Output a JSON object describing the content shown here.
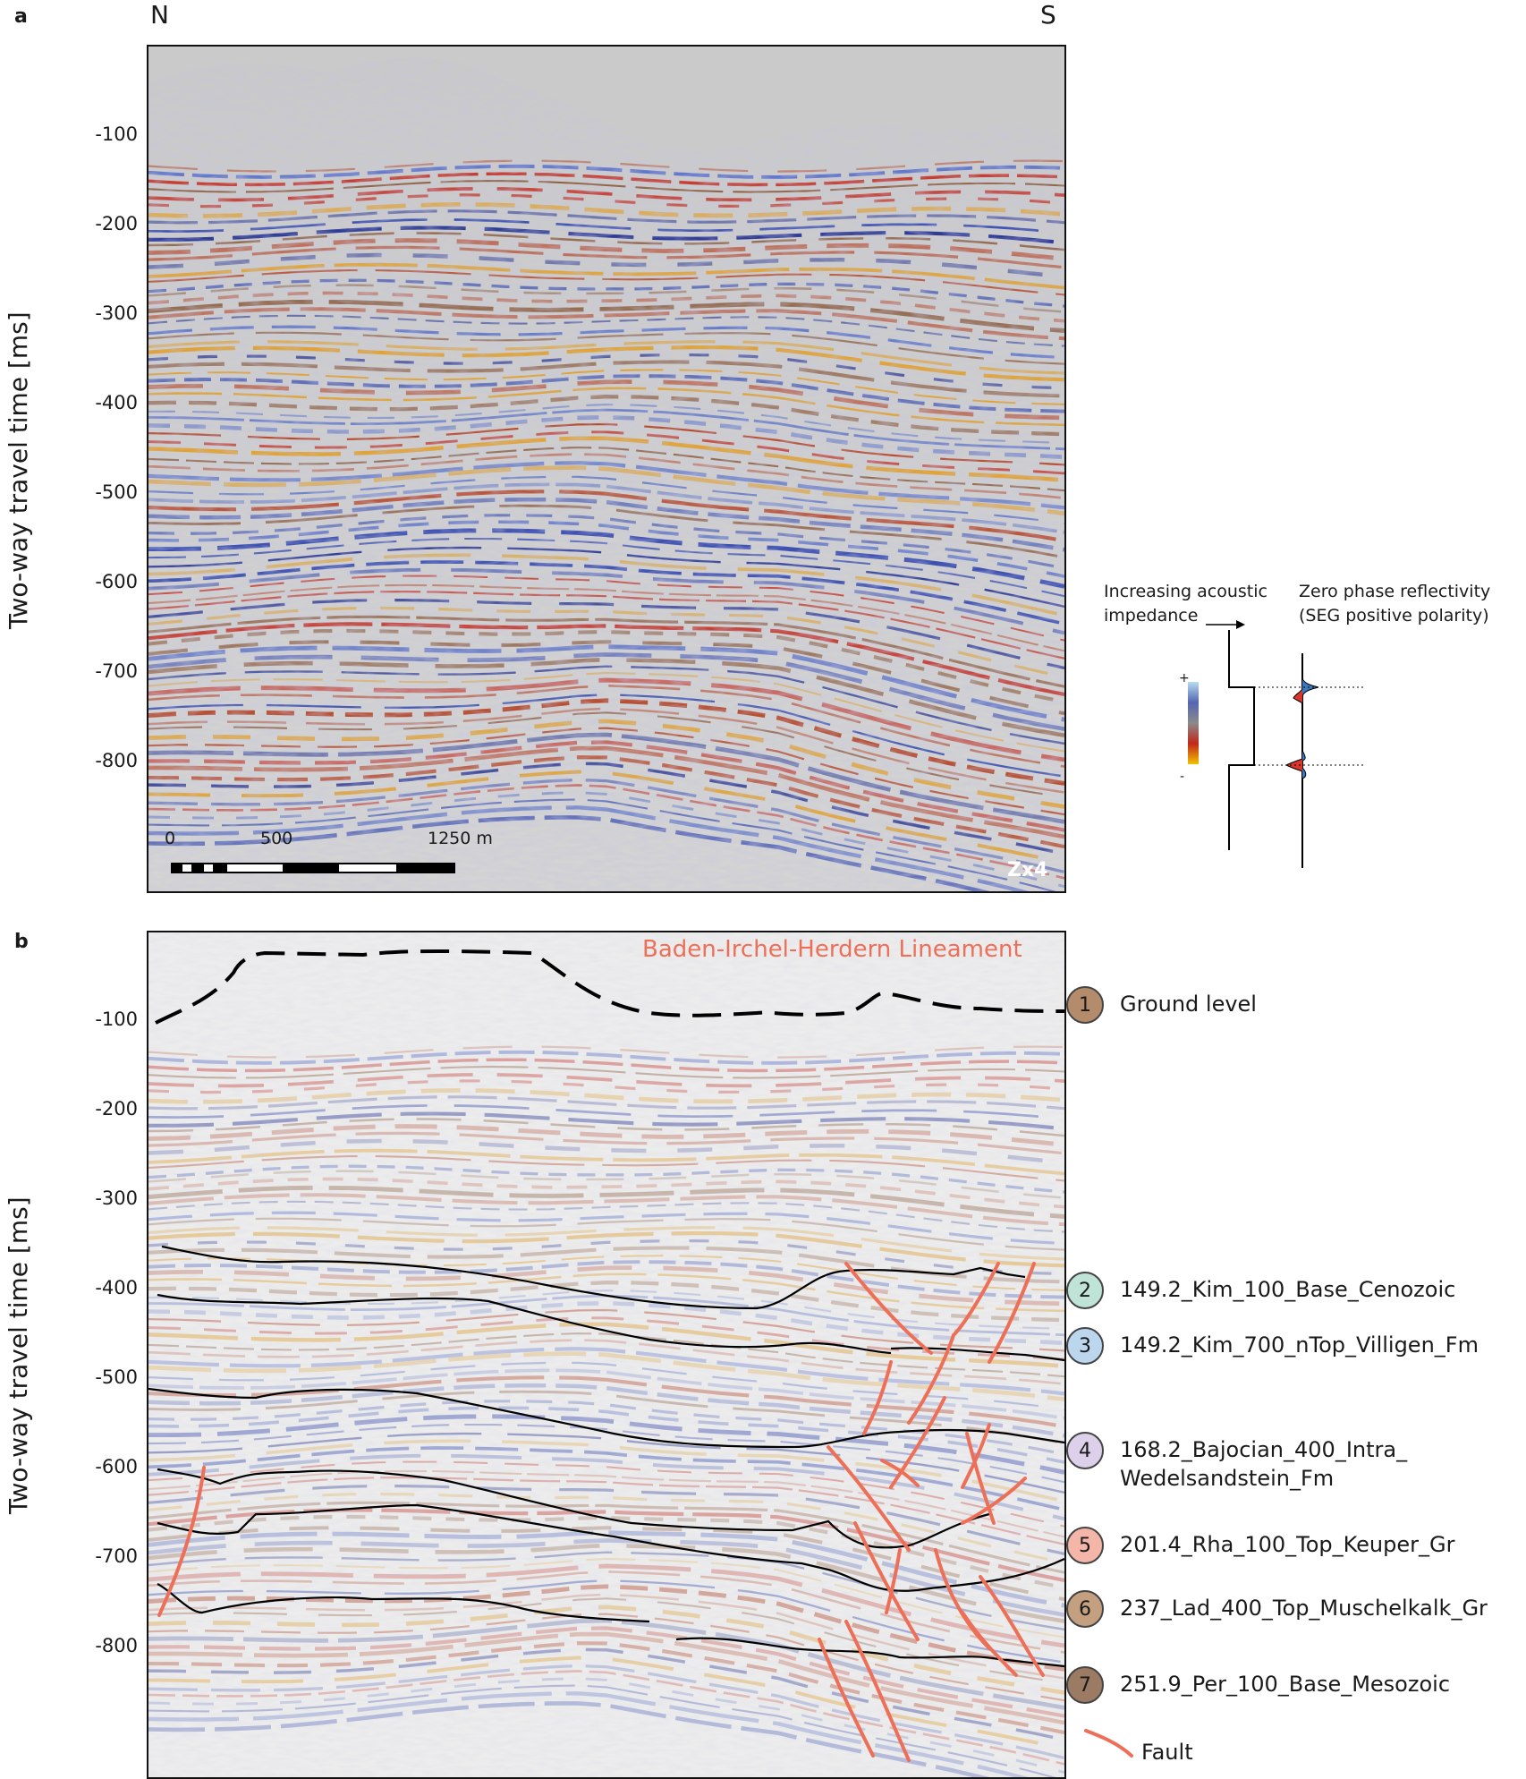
{
  "panel_a": {
    "letter": "a",
    "north": "N",
    "south": "S",
    "y_axis_title": "Two-way travel time [ms]",
    "y_ticks": [
      "-100",
      "-200",
      "-300",
      "-400",
      "-500",
      "-600",
      "-700",
      "-800"
    ],
    "scale_bar": {
      "labels": [
        "0",
        "500",
        "1250 m"
      ]
    },
    "view_label": "Zx4"
  },
  "panel_b": {
    "letter": "b",
    "y_axis_title": "Two-way travel time [ms]",
    "y_ticks": [
      "-100",
      "-200",
      "-300",
      "-400",
      "-500",
      "-600",
      "-700",
      "-800"
    ],
    "lineament_label": "Baden-Irchel-Herdern Lineament"
  },
  "impedance_legend": {
    "left_title": "Increasing acoustic\nimpedance",
    "right_title": "Zero phase reflectivity\n(SEG positive polarity)",
    "plus": "+",
    "minus": "-"
  },
  "horizons": [
    {
      "num": "1",
      "label": "Ground level",
      "color": "#b48c6b"
    },
    {
      "num": "2",
      "label": "149.2_Kim_100_Base_Cenozoic",
      "color": "#bfe3d6"
    },
    {
      "num": "3",
      "label": "149.2_Kim_700_nTop_Villigen_Fm",
      "color": "#bcd6ee"
    },
    {
      "num": "4",
      "label": "168.2_Bajocian_400_Intra_\nWedelsandstein_Fm",
      "color": "#dcd0ea"
    },
    {
      "num": "5",
      "label": "201.4_Rha_100_Top_Keuper_Gr",
      "color": "#f4b6a8"
    },
    {
      "num": "6",
      "label": "237_Lad_400_Top_Muschelkalk_Gr",
      "color": "#c4a080"
    },
    {
      "num": "7",
      "label": "251.9_Per_100_Base_Mesozoic",
      "color": "#9b7b63"
    }
  ],
  "fault_legend": {
    "label": "Fault",
    "color": "#ee6f57"
  }
}
